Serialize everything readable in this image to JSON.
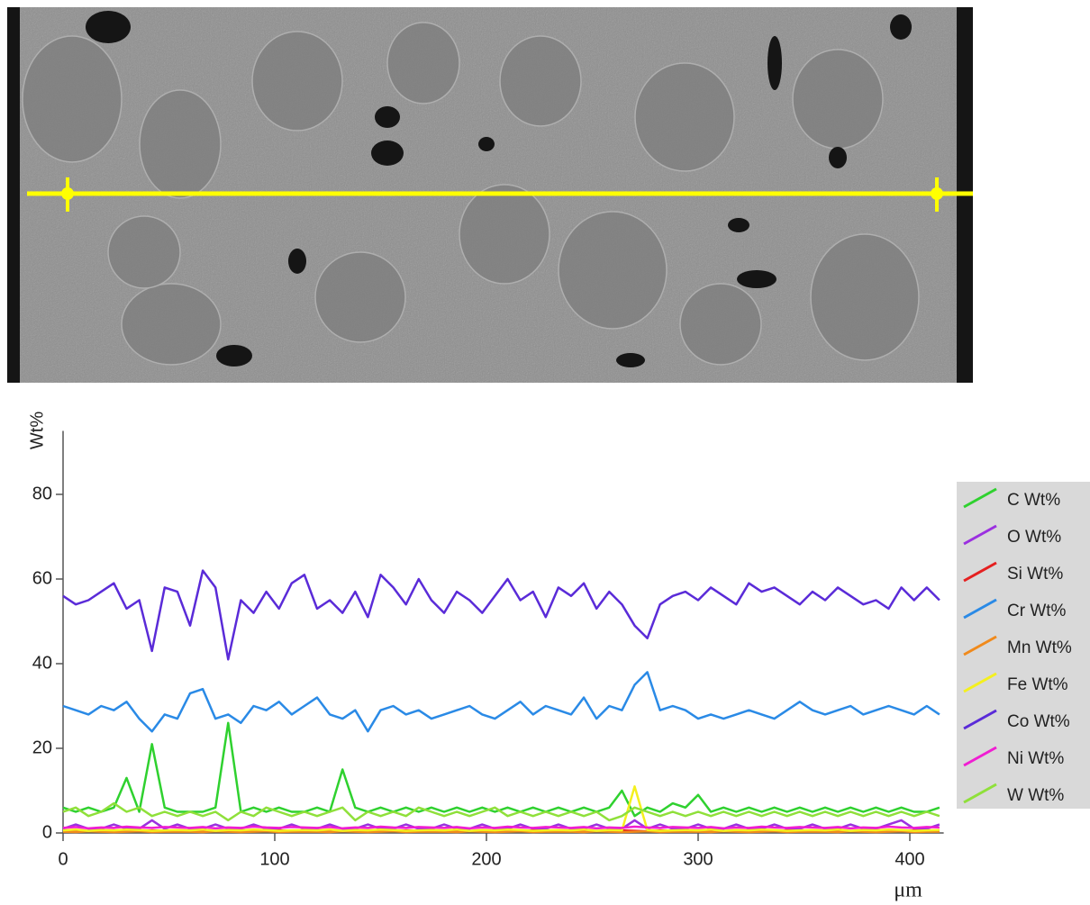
{
  "chart_data": {
    "type": "line",
    "y_label": "Wt%",
    "x_label": "μm",
    "xlim": [
      0,
      416
    ],
    "ylim": [
      0,
      95
    ],
    "xticks": [
      0,
      100,
      200,
      300,
      400
    ],
    "yticks": [
      0,
      20,
      40,
      60,
      80
    ],
    "x": [
      0,
      6,
      12,
      18,
      24,
      30,
      36,
      42,
      48,
      54,
      60,
      66,
      72,
      78,
      84,
      90,
      96,
      102,
      108,
      114,
      120,
      126,
      132,
      138,
      144,
      150,
      156,
      162,
      168,
      174,
      180,
      186,
      192,
      198,
      204,
      210,
      216,
      222,
      228,
      234,
      240,
      246,
      252,
      258,
      264,
      270,
      276,
      282,
      288,
      294,
      300,
      306,
      312,
      318,
      324,
      330,
      336,
      342,
      348,
      354,
      360,
      366,
      372,
      378,
      384,
      390,
      396,
      402,
      408,
      414
    ],
    "series": [
      {
        "name": "C Wt%",
        "color": "#2fd12f",
        "values": [
          6,
          5,
          6,
          5,
          6,
          13,
          5,
          21,
          6,
          5,
          5,
          5,
          6,
          26,
          5,
          6,
          5,
          6,
          5,
          5,
          6,
          5,
          15,
          6,
          5,
          6,
          5,
          6,
          5,
          6,
          5,
          6,
          5,
          6,
          5,
          6,
          5,
          6,
          5,
          6,
          5,
          6,
          5,
          6,
          10,
          4,
          6,
          5,
          7,
          6,
          9,
          5,
          6,
          5,
          6,
          5,
          6,
          5,
          6,
          5,
          6,
          5,
          6,
          5,
          6,
          5,
          6,
          5,
          5,
          6
        ]
      },
      {
        "name": "O Wt%",
        "color": "#9b30e0",
        "values": [
          1,
          2,
          1,
          1,
          2,
          1,
          1,
          3,
          1,
          2,
          1,
          1,
          2,
          1,
          1,
          2,
          1,
          1,
          2,
          1,
          1,
          2,
          1,
          1,
          2,
          1,
          1,
          2,
          1,
          1,
          2,
          1,
          1,
          2,
          1,
          1,
          2,
          1,
          1,
          2,
          1,
          1,
          2,
          1,
          1,
          3,
          1,
          2,
          1,
          1,
          2,
          1,
          1,
          2,
          1,
          1,
          2,
          1,
          1,
          2,
          1,
          1,
          2,
          1,
          1,
          2,
          3,
          1,
          1,
          2
        ]
      },
      {
        "name": "Si Wt%",
        "color": "#e52020",
        "values": [
          0.5,
          0.6,
          0.4,
          0.5,
          0.6,
          0.5,
          0.4,
          0.6,
          0.5,
          0.5,
          0.5,
          0.6,
          0.4,
          0.5,
          0.6,
          0.5,
          0.4,
          0.6,
          0.5,
          0.5,
          0.5,
          0.6,
          0.4,
          0.5,
          0.6,
          0.5,
          0.4,
          0.6,
          0.5,
          0.5,
          0.5,
          0.6,
          0.4,
          0.5,
          0.6,
          0.5,
          0.4,
          0.6,
          0.5,
          0.5,
          0.5,
          0.6,
          0.4,
          0.5,
          0.6,
          0.5,
          0.4,
          0.6,
          0.5,
          0.5,
          0.5,
          0.6,
          0.4,
          0.5,
          0.6,
          0.5,
          0.4,
          0.6,
          0.5,
          0.5,
          0.5,
          0.6,
          0.4,
          0.5,
          0.6,
          0.5,
          0.4,
          0.6,
          0.5,
          0.5
        ]
      },
      {
        "name": "Cr Wt%",
        "color": "#2a8ae6",
        "values": [
          30,
          29,
          28,
          30,
          29,
          31,
          27,
          24,
          28,
          27,
          33,
          34,
          27,
          28,
          26,
          30,
          29,
          31,
          28,
          30,
          32,
          28,
          27,
          29,
          24,
          29,
          30,
          28,
          29,
          27,
          28,
          29,
          30,
          28,
          27,
          29,
          31,
          28,
          30,
          29,
          28,
          32,
          27,
          30,
          29,
          35,
          38,
          29,
          30,
          29,
          27,
          28,
          27,
          28,
          29,
          28,
          27,
          29,
          31,
          29,
          28,
          29,
          30,
          28,
          29,
          30,
          29,
          28,
          30,
          28
        ]
      },
      {
        "name": "Mn Wt%",
        "color": "#f08a1c",
        "values": [
          0.3,
          0.2,
          0.4,
          0.3,
          0.2,
          0.3,
          0.4,
          0.2,
          0.3,
          0.3,
          0.3,
          0.2,
          0.4,
          0.3,
          0.2,
          0.3,
          0.4,
          0.2,
          0.3,
          0.3,
          0.3,
          0.2,
          0.4,
          0.3,
          0.2,
          0.3,
          0.4,
          0.2,
          0.3,
          0.3,
          0.3,
          0.2,
          0.4,
          0.3,
          0.2,
          0.3,
          0.4,
          0.2,
          0.3,
          0.3,
          0.3,
          0.2,
          0.4,
          0.3,
          0.2,
          0.3,
          0.4,
          0.2,
          0.3,
          0.3,
          0.3,
          0.2,
          0.4,
          0.3,
          0.2,
          0.3,
          0.4,
          0.2,
          0.3,
          0.3,
          0.3,
          0.2,
          0.4,
          0.3,
          0.2,
          0.3,
          0.4,
          0.2,
          0.3,
          0.3
        ]
      },
      {
        "name": "Fe Wt%",
        "color": "#f4f01e",
        "values": [
          0.6,
          0.8,
          0.5,
          0.7,
          0.6,
          0.8,
          0.7,
          0.5,
          0.6,
          0.7,
          0.6,
          0.8,
          0.5,
          0.7,
          0.6,
          0.8,
          0.7,
          0.5,
          0.6,
          0.7,
          0.6,
          0.8,
          0.5,
          0.7,
          0.6,
          0.8,
          0.7,
          0.5,
          0.6,
          0.7,
          0.6,
          0.8,
          0.5,
          0.7,
          0.6,
          0.8,
          0.7,
          0.5,
          0.6,
          0.7,
          0.6,
          0.8,
          0.5,
          0.7,
          0.6,
          11,
          0.7,
          0.5,
          0.6,
          0.7,
          0.6,
          0.8,
          0.5,
          0.7,
          0.6,
          0.8,
          0.7,
          0.5,
          0.6,
          0.7,
          0.6,
          0.8,
          0.5,
          0.7,
          0.6,
          0.8,
          0.7,
          0.5,
          0.6,
          0.7
        ]
      },
      {
        "name": "Co Wt%",
        "color": "#5a2bd8",
        "values": [
          56,
          54,
          55,
          57,
          59,
          53,
          55,
          43,
          58,
          57,
          49,
          62,
          58,
          41,
          55,
          52,
          57,
          53,
          59,
          61,
          53,
          55,
          52,
          57,
          51,
          61,
          58,
          54,
          60,
          55,
          52,
          57,
          55,
          52,
          56,
          60,
          55,
          57,
          51,
          58,
          56,
          59,
          53,
          57,
          54,
          49,
          46,
          54,
          56,
          57,
          55,
          58,
          56,
          54,
          59,
          57,
          58,
          56,
          54,
          57,
          55,
          58,
          56,
          54,
          55,
          53,
          58,
          55,
          58,
          55
        ]
      },
      {
        "name": "Ni Wt%",
        "color": "#f01ed2",
        "values": [
          1.2,
          1.4,
          1.1,
          1.3,
          1.2,
          1.5,
          1.3,
          1.2,
          1.4,
          1.3,
          1.2,
          1.4,
          1.1,
          1.3,
          1.2,
          1.5,
          1.3,
          1.2,
          1.4,
          1.3,
          1.2,
          1.4,
          1.1,
          1.3,
          1.2,
          1.5,
          1.3,
          1.2,
          1.4,
          1.3,
          1.2,
          1.4,
          1.1,
          1.3,
          1.2,
          1.5,
          1.3,
          1.2,
          1.4,
          1.3,
          1.2,
          1.4,
          1.1,
          1.3,
          1.2,
          1.5,
          1.3,
          1.2,
          1.4,
          1.3,
          1.2,
          1.4,
          1.1,
          1.3,
          1.2,
          1.5,
          1.3,
          1.2,
          1.4,
          1.3,
          1.2,
          1.4,
          1.1,
          1.3,
          1.2,
          1.5,
          1.3,
          1.2,
          1.4,
          1.3
        ]
      },
      {
        "name": "W Wt%",
        "color": "#8fe03a",
        "values": [
          5,
          6,
          4,
          5,
          7,
          5,
          6,
          4,
          5,
          4,
          5,
          4,
          5,
          3,
          5,
          4,
          6,
          5,
          4,
          5,
          4,
          5,
          6,
          3,
          5,
          4,
          5,
          4,
          6,
          5,
          4,
          5,
          4,
          5,
          6,
          4,
          5,
          4,
          5,
          4,
          5,
          4,
          5,
          3,
          4,
          6,
          5,
          4,
          5,
          4,
          5,
          4,
          5,
          4,
          5,
          4,
          5,
          4,
          5,
          4,
          5,
          4,
          5,
          4,
          5,
          4,
          5,
          4,
          5,
          4
        ]
      }
    ]
  }
}
